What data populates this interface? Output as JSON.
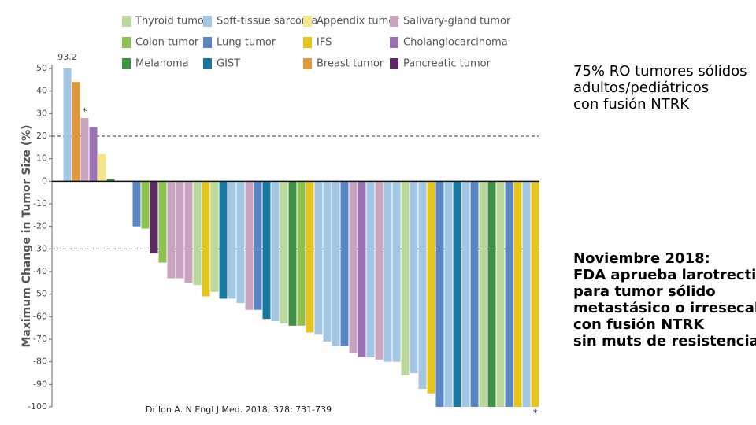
{
  "chart_data": {
    "type": "bar",
    "y_label": "Maximum Change in Tumor Size (%)",
    "legend": [
      {
        "name": "Thyroid tumor",
        "color": "#b9d89a"
      },
      {
        "name": "Soft-tissue sarcoma",
        "color": "#a3c6e2"
      },
      {
        "name": "Appendix tumor",
        "color": "#f5e58a"
      },
      {
        "name": "Salivary-gland tumor",
        "color": "#c8a4c0"
      },
      {
        "name": "Colon tumor",
        "color": "#8dc150"
      },
      {
        "name": "Lung tumor",
        "color": "#5a86c4"
      },
      {
        "name": "IFS",
        "color": "#e6c41e"
      },
      {
        "name": "Cholangiocarcinoma",
        "color": "#9b72b4"
      },
      {
        "name": "Melanoma",
        "color": "#3f8f46"
      },
      {
        "name": "GIST",
        "color": "#1a78a0"
      },
      {
        "name": "Breast tumor",
        "color": "#e0983a"
      },
      {
        "name": "Pancreatic tumor",
        "color": "#5b2a62"
      }
    ],
    "values": [
      93.2,
      44,
      28,
      24,
      12,
      1,
      null,
      null,
      -20,
      -21,
      -32,
      -36,
      -43,
      -43,
      -45,
      -46,
      -51,
      -49,
      -52,
      -52,
      -54,
      -57,
      -57,
      -61,
      -62,
      -63,
      -64,
      -64,
      -67,
      -68,
      -71,
      -73,
      -73,
      -76,
      -78,
      -78,
      -79,
      -80,
      -80,
      -86,
      -85,
      -92,
      -94,
      -100,
      -100,
      -100,
      -100,
      -100,
      -100,
      -100,
      -100,
      -100,
      -100,
      -100,
      -100
    ],
    "bar_types": [
      1,
      10,
      3,
      7,
      2,
      8,
      null,
      null,
      5,
      4,
      11,
      4,
      3,
      3,
      3,
      0,
      6,
      0,
      9,
      1,
      1,
      3,
      5,
      9,
      1,
      0,
      8,
      4,
      6,
      1,
      1,
      1,
      5,
      3,
      7,
      1,
      3,
      1,
      1,
      0,
      1,
      1,
      6,
      5,
      1,
      9,
      1,
      5,
      0,
      8,
      0,
      5,
      6,
      1,
      6
    ],
    "value_labels": [
      "93.2",
      null,
      null,
      null,
      null,
      null,
      null,
      null,
      null,
      null,
      null,
      null,
      null,
      null,
      null,
      null,
      null,
      null,
      null,
      null,
      null,
      null,
      null,
      null,
      null,
      null,
      null,
      null,
      null,
      null,
      null,
      null,
      null,
      null,
      null,
      null,
      null,
      null,
      null,
      null,
      null,
      null,
      null,
      null,
      null,
      null,
      null,
      null,
      null,
      null,
      null,
      null,
      null,
      null,
      null
    ],
    "annotations": [
      {
        "text": "*",
        "bar": 2
      },
      {
        "text": "*",
        "bar": 54
      }
    ],
    "reference_lines": [
      20,
      -30
    ],
    "ylim": [
      -100,
      50
    ],
    "yticks": [
      -100,
      -90,
      -80,
      -70,
      -60,
      -50,
      -40,
      -30,
      -20,
      -10,
      0,
      10,
      20,
      30,
      40,
      50
    ],
    "source": "Drilon A. N Engl J Med. 2018; 378: 731-739"
  },
  "slide": {
    "text1": [
      "75% RO tumores sólidos",
      "adultos/pediátricos",
      "con fusión NTRK"
    ],
    "text2": [
      "Noviembre 2018:",
      "FDA aprueba larotrectinib",
      "para tumor sólido",
      "metastásico o irresecable",
      "con fusión NTRK",
      "sin muts de resistencia"
    ]
  }
}
